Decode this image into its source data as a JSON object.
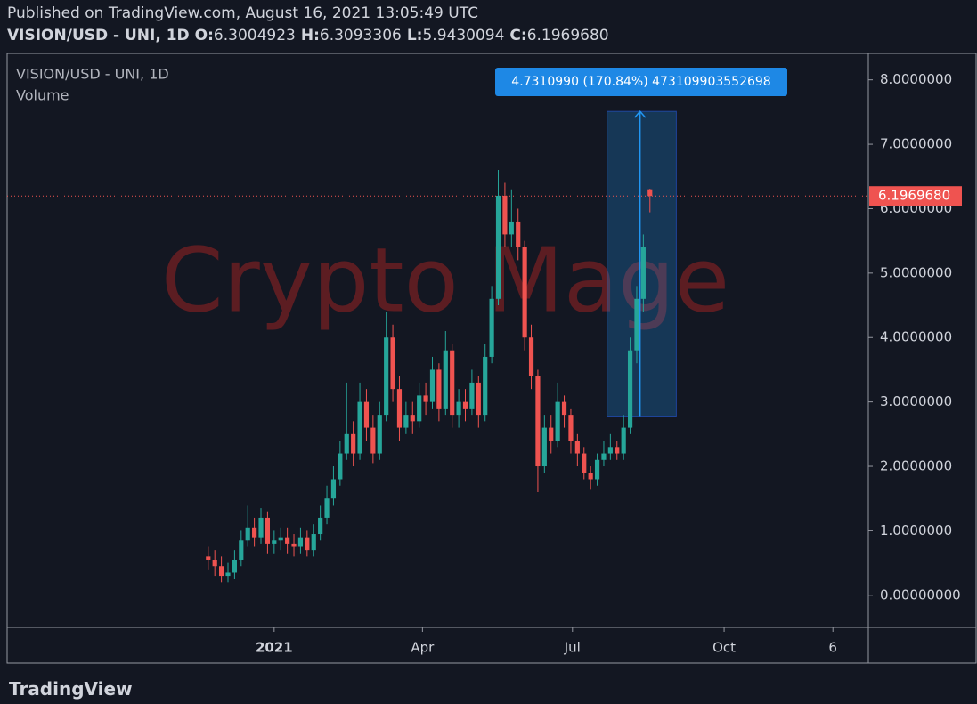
{
  "header": {
    "published": "Published on TradingView.com, August 16, 2021 13:05:49 UTC",
    "symbol": "VISION/USD - UNI, 1D",
    "ohlc": [
      {
        "key": "O:",
        "text": "6.3004923"
      },
      {
        "key": "H:",
        "text": "6.3093306"
      },
      {
        "key": "L:",
        "text": "5.9430094"
      },
      {
        "key": "C:",
        "text": "6.1969680"
      }
    ]
  },
  "footer": {
    "brand": "TradingView"
  },
  "chart_data": {
    "type": "candlestick",
    "legend": [
      "VISION/USD - UNI, 1D",
      "Volume"
    ],
    "watermark": "Crypto Mage",
    "up_color": "#26a69a",
    "down_color": "#ef5350",
    "x": [
      -40,
      -36,
      -32,
      -28,
      -24,
      -20,
      -16,
      -12,
      -8,
      -4,
      0,
      4,
      8,
      12,
      16,
      20,
      24,
      28,
      32,
      36,
      40,
      44,
      48,
      52,
      56,
      60,
      64,
      68,
      72,
      76,
      80,
      84,
      88,
      92,
      96,
      100,
      104,
      108,
      112,
      116,
      120,
      124,
      128,
      132,
      136,
      140,
      144,
      148,
      152,
      156,
      160,
      164,
      168,
      172,
      176,
      180,
      184,
      188,
      192,
      196,
      200,
      204,
      208,
      212,
      216,
      220,
      224,
      228
    ],
    "open": [
      0.6,
      0.55,
      0.45,
      0.3,
      0.35,
      0.55,
      0.85,
      1.05,
      0.9,
      1.2,
      0.8,
      0.85,
      0.9,
      0.8,
      0.75,
      0.9,
      0.7,
      0.95,
      1.2,
      1.5,
      1.8,
      2.2,
      2.5,
      2.2,
      3.0,
      2.6,
      2.2,
      2.8,
      4.0,
      3.2,
      2.6,
      2.8,
      2.7,
      3.1,
      3.0,
      3.5,
      2.9,
      3.8,
      2.8,
      3.0,
      2.9,
      3.3,
      2.8,
      3.7,
      4.6,
      6.2,
      5.6,
      5.8,
      5.4,
      4.0,
      3.4,
      2.0,
      2.6,
      2.4,
      3.0,
      2.8,
      2.4,
      2.2,
      1.9,
      1.8,
      2.1,
      2.2,
      2.3,
      2.2,
      2.6,
      3.8,
      4.6,
      6.3004923
    ],
    "high": [
      0.75,
      0.7,
      0.6,
      0.5,
      0.7,
      1.0,
      1.4,
      1.2,
      1.35,
      1.3,
      1.0,
      1.05,
      1.05,
      0.95,
      1.05,
      1.0,
      1.1,
      1.4,
      1.7,
      2.0,
      2.4,
      3.3,
      2.7,
      3.3,
      3.2,
      2.8,
      3.0,
      4.4,
      4.2,
      3.4,
      3.0,
      3.0,
      3.3,
      3.3,
      3.7,
      3.6,
      4.1,
      3.9,
      3.2,
      3.2,
      3.5,
      3.4,
      3.9,
      4.8,
      6.6,
      6.4,
      6.3,
      6.0,
      5.5,
      4.2,
      3.5,
      2.8,
      2.8,
      3.3,
      3.1,
      2.9,
      2.5,
      2.3,
      2.0,
      2.2,
      2.4,
      2.5,
      2.4,
      2.8,
      4.0,
      4.8,
      5.6,
      6.3093306
    ],
    "low": [
      0.4,
      0.3,
      0.2,
      0.2,
      0.25,
      0.45,
      0.75,
      0.75,
      0.8,
      0.65,
      0.65,
      0.7,
      0.65,
      0.6,
      0.65,
      0.6,
      0.6,
      0.85,
      1.1,
      1.4,
      1.7,
      2.1,
      2.0,
      2.1,
      2.4,
      2.05,
      2.1,
      2.7,
      3.0,
      2.4,
      2.5,
      2.5,
      2.6,
      2.8,
      2.9,
      2.7,
      2.8,
      2.6,
      2.6,
      2.7,
      2.8,
      2.6,
      2.7,
      3.6,
      4.5,
      5.4,
      5.4,
      5.2,
      3.8,
      3.2,
      1.6,
      1.9,
      2.2,
      2.3,
      2.6,
      2.2,
      2.0,
      1.8,
      1.65,
      1.7,
      2.0,
      2.1,
      2.1,
      2.1,
      2.5,
      3.6,
      4.4,
      5.9430094
    ],
    "close": [
      0.55,
      0.45,
      0.3,
      0.35,
      0.55,
      0.85,
      1.05,
      0.9,
      1.2,
      0.8,
      0.85,
      0.9,
      0.8,
      0.75,
      0.9,
      0.7,
      0.95,
      1.2,
      1.5,
      1.8,
      2.2,
      2.5,
      2.2,
      3.0,
      2.6,
      2.2,
      2.8,
      4.0,
      3.2,
      2.6,
      2.8,
      2.7,
      3.1,
      3.0,
      3.5,
      2.9,
      3.8,
      2.8,
      3.0,
      2.9,
      3.3,
      2.8,
      3.7,
      4.6,
      6.2,
      5.6,
      5.8,
      5.4,
      4.0,
      3.4,
      2.0,
      2.6,
      2.4,
      3.0,
      2.8,
      2.4,
      2.2,
      1.9,
      1.8,
      2.1,
      2.2,
      2.3,
      2.2,
      2.6,
      3.8,
      4.6,
      5.4,
      6.196968
    ],
    "last_price": {
      "value": 6.196968,
      "label": "6.1969680"
    },
    "measure": {
      "label": "4.7310990 (170.84%) 473109903552698",
      "from": 2.78,
      "to": 7.51,
      "x_start": 202,
      "x_end": 244,
      "x_arrow": 222
    },
    "xlim": [
      -162,
      360.5
    ],
    "xticks": [
      {
        "value": 0,
        "label": "2021"
      },
      {
        "value": 90,
        "label": "Apr"
      },
      {
        "value": 181,
        "label": "Jul"
      },
      {
        "value": 273,
        "label": "Oct"
      },
      {
        "value": 339,
        "label": "6"
      }
    ],
    "ylim": [
      -0.5,
      8.41
    ],
    "yticks": [
      {
        "value": 0,
        "label": "0.00000000"
      },
      {
        "value": 1,
        "label": "1.0000000"
      },
      {
        "value": 2,
        "label": "2.0000000"
      },
      {
        "value": 3,
        "label": "3.0000000"
      },
      {
        "value": 4,
        "label": "4.0000000"
      },
      {
        "value": 5,
        "label": "5.0000000"
      },
      {
        "value": 6,
        "label": "6.0000000"
      },
      {
        "value": 7,
        "label": "7.0000000"
      },
      {
        "value": 8,
        "label": "8.0000000"
      }
    ]
  }
}
